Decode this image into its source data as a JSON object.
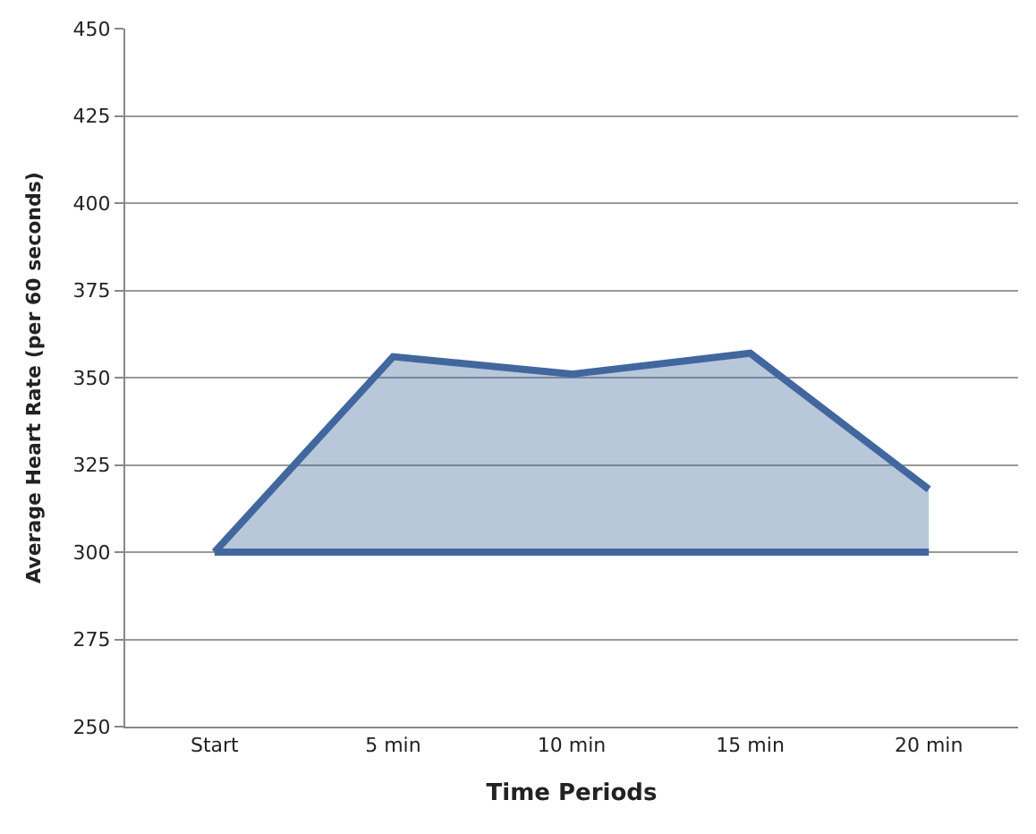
{
  "chart_data": {
    "type": "area",
    "xlabel": "Time Periods",
    "ylabel": "Average Heart Rate (per 60 seconds)",
    "categories": [
      "Start",
      "5 min",
      "10 min",
      "15 min",
      "20 min"
    ],
    "series": [
      {
        "type": "line",
        "color": "#41679e",
        "values": [
          300,
          300,
          300,
          300,
          300
        ]
      },
      {
        "color": "#41679e",
        "values": [
          300,
          356,
          351,
          357,
          318
        ]
      }
    ],
    "ylim": [
      250,
      450
    ],
    "yticks": [
      250,
      275,
      300,
      325,
      350,
      375,
      400,
      425,
      450
    ],
    "grid": "y"
  }
}
